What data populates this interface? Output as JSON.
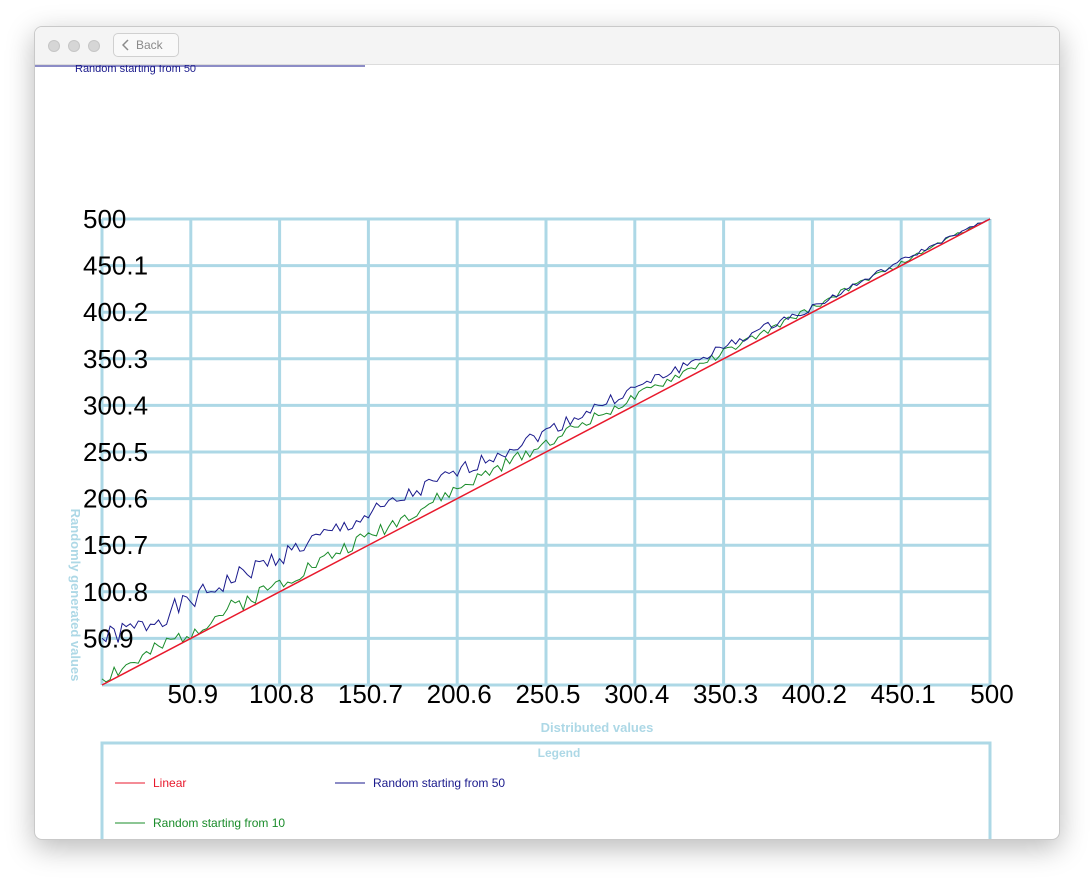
{
  "window": {
    "back_label": "Back"
  },
  "header_legend": {
    "label": "Random starting from 50",
    "color": "#1a1a8c"
  },
  "chart_data": {
    "type": "line",
    "title": "",
    "xlabel": "Distributed values",
    "ylabel": "Randomly generated values",
    "xlim": [
      1,
      500
    ],
    "ylim": [
      1,
      500
    ],
    "x_ticks": [
      "50.9",
      "100.8",
      "150.7",
      "200.6",
      "250.5",
      "300.4",
      "350.3",
      "400.2",
      "450.1",
      "500"
    ],
    "y_ticks": [
      "500",
      "450.1",
      "400.2",
      "350.3",
      "300.4",
      "250.5",
      "200.6",
      "150.7",
      "100.8",
      "50.9"
    ],
    "grid": true,
    "legend_title": "Legend",
    "legend_position": "bottom",
    "series": [
      {
        "name": "Linear",
        "color": "#e8192c",
        "x": [
          1,
          500
        ],
        "y": [
          1,
          500
        ]
      },
      {
        "name": "Random starting from 50",
        "color": "#1a1a8c",
        "x": [
          1,
          25,
          50,
          75,
          100,
          125,
          150,
          175,
          200,
          225,
          250,
          275,
          300,
          325,
          350,
          375,
          400,
          425,
          450,
          475,
          500
        ],
        "y": [
          50,
          65,
          90,
          115,
          138,
          160,
          182,
          205,
          228,
          250,
          272,
          295,
          318,
          340,
          362,
          385,
          405,
          430,
          455,
          478,
          500
        ]
      },
      {
        "name": "Random starting from 10",
        "color": "#1a8c2a",
        "x": [
          1,
          25,
          50,
          75,
          100,
          125,
          150,
          175,
          200,
          225,
          250,
          275,
          300,
          325,
          350,
          375,
          400,
          425,
          450,
          475,
          500
        ],
        "y": [
          10,
          30,
          58,
          85,
          110,
          135,
          160,
          185,
          210,
          235,
          260,
          285,
          308,
          333,
          357,
          380,
          405,
          430,
          452,
          478,
          500
        ]
      }
    ]
  }
}
